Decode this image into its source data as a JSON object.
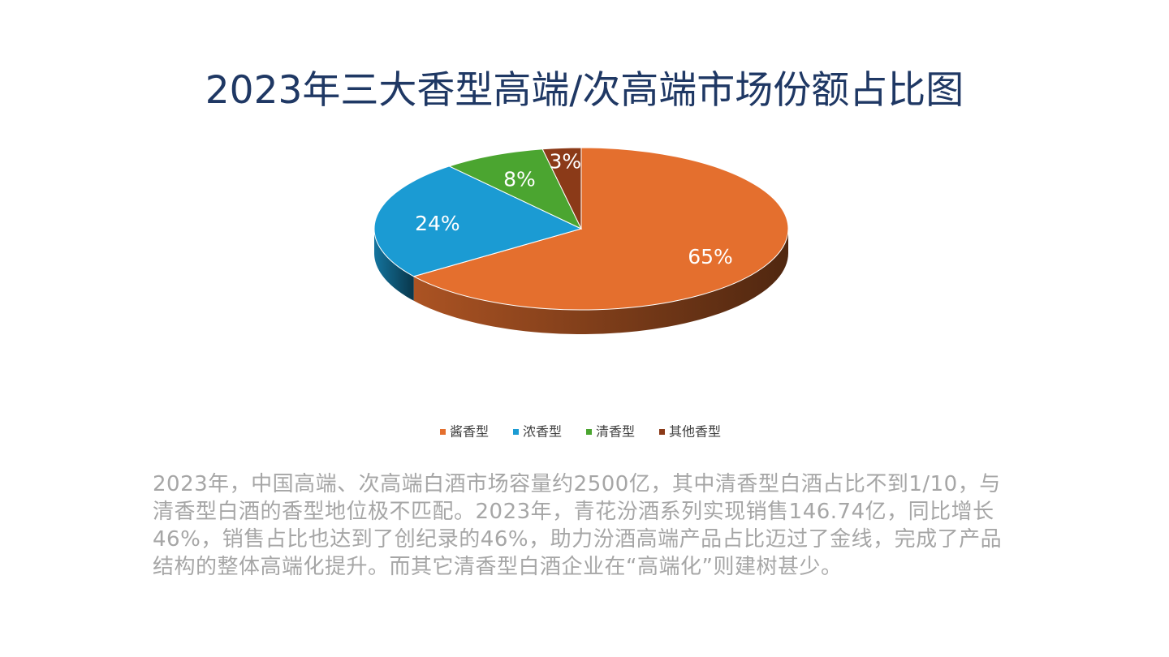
{
  "chart_data": {
    "type": "pie",
    "title": "2023年三大香型高端/次高端市场份额占比图",
    "categories": [
      "酱香型",
      "浓香型",
      "清香型",
      "其他香型"
    ],
    "values": [
      65,
      24,
      8,
      3
    ],
    "value_labels": [
      "65%",
      "24%",
      "8%",
      "3%"
    ],
    "colors": [
      "#e46f2e",
      "#1b9bd3",
      "#4ba530",
      "#8b3a18"
    ],
    "legend": "bottom"
  },
  "description": "2023年，中国高端、次高端白酒市场容量约2500亿，其中清香型白酒占比不到1/10，与清香型白酒的香型地位极不匹配。2023年，青花汾酒系列实现销售146.74亿，同比增长46%，销售占比也达到了创纪录的46%，助力汾酒高端产品占比迈过了金线，完成了产品结构的整体高端化提升。而其它清香型白酒企业在“高端化”则建树甚少。"
}
